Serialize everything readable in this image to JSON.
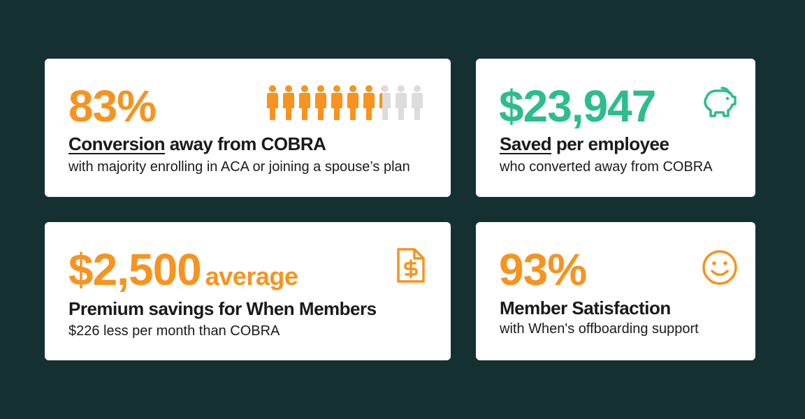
{
  "cards": [
    {
      "stat": "83%",
      "heading_underlined": "Conversion",
      "heading_rest": " away from COBRA",
      "sub": "with majority enrolling in ACA or joining a spouse’s plan",
      "icon": "people-icon",
      "people_converted_fraction": 0.83,
      "color": "#f7931e"
    },
    {
      "stat": "$23,947",
      "heading_underlined": "Saved",
      "heading_rest": " per employee",
      "sub": "who converted away from COBRA",
      "icon": "piggy-bank-icon",
      "color": "#2bbd8b"
    },
    {
      "stat": "$2,500",
      "stat_suffix": "average",
      "heading": "Premium savings for When Members",
      "sub": "$226 less per month than COBRA",
      "icon": "dollar-document-icon",
      "color": "#f7931e"
    },
    {
      "stat": "93%",
      "heading": "Member Satisfaction",
      "sub": "with When's offboarding support",
      "icon": "smiley-icon",
      "color": "#f7931e"
    }
  ],
  "background_color": "#153031"
}
